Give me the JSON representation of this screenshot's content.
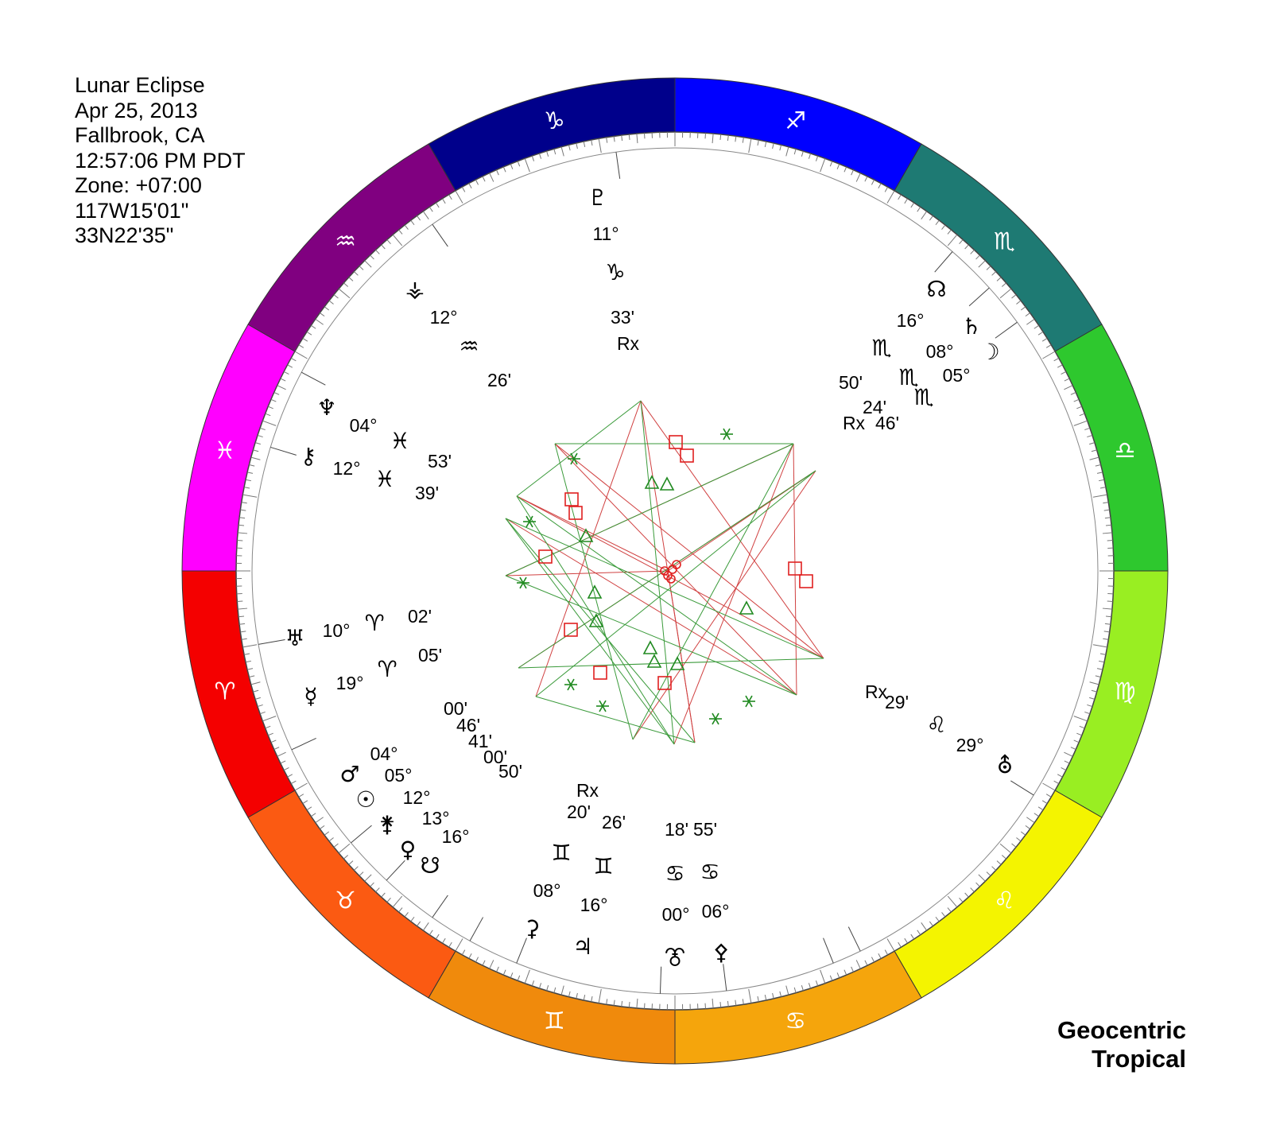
{
  "header": {
    "lines": [
      "Lunar Eclipse",
      "Apr 25, 2013",
      "Fallbrook, CA",
      "12:57:06 PM PDT",
      "Zone: +07:00",
      "117W15'01\"",
      "33N22'35\""
    ]
  },
  "footer": {
    "line1": "Geocentric",
    "line2": "Tropical"
  },
  "signs": [
    {
      "name": "capricorn",
      "glyph": "♑",
      "color": "#00008b"
    },
    {
      "name": "sagittarius",
      "glyph": "♐",
      "color": "#0000ff"
    },
    {
      "name": "scorpio",
      "glyph": "♏",
      "color": "#1e7a73"
    },
    {
      "name": "libra",
      "glyph": "♎",
      "color": "#2ec82e"
    },
    {
      "name": "virgo",
      "glyph": "♍",
      "color": "#99ee22"
    },
    {
      "name": "leo",
      "glyph": "♌",
      "color": "#f4f400"
    },
    {
      "name": "cancer",
      "glyph": "♋",
      "color": "#f5a50c"
    },
    {
      "name": "gemini",
      "glyph": "♊",
      "color": "#f08a0c"
    },
    {
      "name": "taurus",
      "glyph": "♉",
      "color": "#fb5a12"
    },
    {
      "name": "aries",
      "glyph": "♈",
      "color": "#f40000"
    },
    {
      "name": "pisces",
      "glyph": "♓",
      "color": "#ff00ff"
    },
    {
      "name": "aquarius",
      "glyph": "♒",
      "color": "#800080"
    }
  ],
  "labels": [
    {
      "name": "pluto",
      "glyph": "♇",
      "text": "11°"
    },
    {
      "name": "pluto-sign",
      "glyph": "♑",
      "text": ""
    },
    {
      "name": "pluto-min",
      "glyph": "",
      "text": "33'"
    },
    {
      "name": "pluto-retro",
      "glyph": "",
      "text": "Rx"
    },
    {
      "name": "vesta",
      "glyph": "⚶",
      "text": "12°"
    },
    {
      "name": "vesta-sign",
      "glyph": "♒",
      "text": ""
    },
    {
      "name": "vesta-min",
      "glyph": "",
      "text": "26'"
    },
    {
      "name": "neptune",
      "glyph": "♆",
      "text": "04°"
    },
    {
      "name": "neptune-sign",
      "glyph": "♓",
      "text": "53'"
    },
    {
      "name": "chiron",
      "glyph": "⚷",
      "text": "12°"
    },
    {
      "name": "chiron-sign",
      "glyph": "♓",
      "text": "39'"
    },
    {
      "name": "uranus",
      "glyph": "♅",
      "text": "10°"
    },
    {
      "name": "uranus-sign",
      "glyph": "♈",
      "text": "02'"
    },
    {
      "name": "mercury",
      "glyph": "☿",
      "text": "19°"
    },
    {
      "name": "mercury-sign",
      "glyph": "♈",
      "text": "05'"
    },
    {
      "name": "mars",
      "glyph": "♂",
      "text": "04°"
    },
    {
      "name": "sun",
      "glyph": "☉",
      "text": "05°"
    },
    {
      "name": "juno",
      "glyph": "⚵",
      "text": "12°"
    },
    {
      "name": "venus",
      "glyph": "♀",
      "text": "13°"
    },
    {
      "name": "south-node",
      "glyph": "☋",
      "text": "16°"
    },
    {
      "name": "taurus-min-1",
      "glyph": "",
      "text": "00'"
    },
    {
      "name": "taurus-min-2",
      "glyph": "",
      "text": "46'"
    },
    {
      "name": "taurus-min-3",
      "glyph": "",
      "text": "41'"
    },
    {
      "name": "taurus-min-4",
      "glyph": "",
      "text": "00'"
    },
    {
      "name": "taurus-min-5",
      "glyph": "",
      "text": "50'"
    },
    {
      "name": "ceres",
      "glyph": "⚳",
      "text": "08°"
    },
    {
      "name": "ceres-min",
      "glyph": "♊",
      "text": "20'"
    },
    {
      "name": "ceres-retro",
      "glyph": "",
      "text": "Rx"
    },
    {
      "name": "jupiter",
      "glyph": "♃",
      "text": "16°"
    },
    {
      "name": "jupiter-min",
      "glyph": "♊",
      "text": "26'"
    },
    {
      "name": "midheaven-point",
      "glyph": "⯔",
      "text": "00°"
    },
    {
      "name": "mh-min",
      "glyph": "♋",
      "text": "18'"
    },
    {
      "name": "pallas",
      "glyph": "⚴",
      "text": "06°"
    },
    {
      "name": "pallas-min",
      "glyph": "♋",
      "text": "55'"
    },
    {
      "name": "fortune",
      "glyph": "⛢",
      "text": "29°"
    },
    {
      "name": "fortune-sign",
      "glyph": "♌",
      "text": "29'"
    },
    {
      "name": "fortune-retro",
      "glyph": "",
      "text": "Rx"
    },
    {
      "name": "north-node",
      "glyph": "☊",
      "text": "16°"
    },
    {
      "name": "saturn",
      "glyph": "♄",
      "text": "08°"
    },
    {
      "name": "moon",
      "glyph": "☽",
      "text": "05°"
    },
    {
      "name": "scorpio-min-1",
      "glyph": "♏",
      "text": "50'"
    },
    {
      "name": "scorpio-min-2",
      "glyph": "♏",
      "text": "24'"
    },
    {
      "name": "scorpio-min-3",
      "glyph": "♏",
      "text": "46'"
    },
    {
      "name": "scorpio-retro",
      "glyph": "",
      "text": "Rx"
    }
  ],
  "colors": {
    "square": "#e02020",
    "trine": "#208a20",
    "sextile": "#208a20",
    "line_red": "#d04040",
    "line_green": "#3a9a3a"
  }
}
